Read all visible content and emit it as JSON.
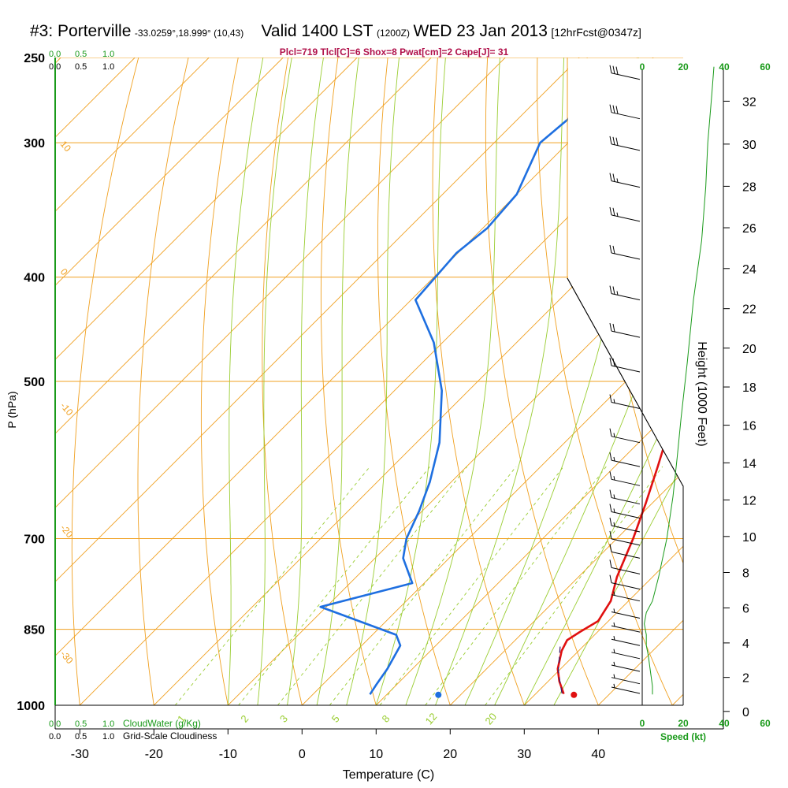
{
  "header": {
    "station": "#3: Porterville",
    "coords": "-33.0259°,18.999° (10,43)",
    "valid": "Valid 1400 LST",
    "zulu": "(1200Z)",
    "date": "WED 23 Jan 2013",
    "forecast": "[12hrFcst@0347z]",
    "indices": "Plcl=719 Tlcl[C]=6 Shox=8 Pwat[cm]=2 Cape[J]= 31"
  },
  "chart_data": {
    "type": "line",
    "subtype": "skew-t log-p sounding",
    "xlabel": "Temperature (C)",
    "ylabel": "P (hPa)",
    "right_axis_label": "Height (1000 Feet)",
    "xlim": [
      -30,
      40
    ],
    "ylim": [
      1000,
      250
    ],
    "x_ticks": [
      "-30",
      "-20",
      "-10",
      "0",
      "10",
      "20",
      "30",
      "40"
    ],
    "pressure_ticks": [
      250,
      300,
      400,
      500,
      700,
      850,
      1000
    ],
    "height_ticks": [
      0,
      2,
      4,
      6,
      8,
      10,
      12,
      14,
      16,
      18,
      20,
      22,
      24,
      26,
      28,
      30,
      32
    ],
    "colors": {
      "temperature": "#e01010",
      "dewpoint": "#1e6fe0",
      "isotherm": "#f0a020",
      "mixing_ratio": "#9acd32",
      "moist_adiabat": "#9acd32",
      "cloud": "#1a9a1a",
      "speed": "#1a9a1a",
      "subtitle": "#b0104a"
    },
    "series": [
      {
        "name": "Temperature",
        "values": [
          {
            "p": 976,
            "t": 33.8
          },
          {
            "p": 950,
            "t": 31.5
          },
          {
            "p": 925,
            "t": 29.6
          },
          {
            "p": 890,
            "t": 27.7
          },
          {
            "p": 870,
            "t": 27.0
          },
          {
            "p": 855,
            "t": 27.6
          },
          {
            "p": 835,
            "t": 28.6
          },
          {
            "p": 800,
            "t": 27.6
          },
          {
            "p": 760,
            "t": 25.2
          },
          {
            "p": 700,
            "t": 22.2
          },
          {
            "p": 650,
            "t": 19.2
          },
          {
            "p": 600,
            "t": 15.8
          },
          {
            "p": 550,
            "t": 12.0
          },
          {
            "p": 500,
            "t": 8.0
          },
          {
            "p": 450,
            "t": 3.6
          },
          {
            "p": 420,
            "t": 0.2
          },
          {
            "p": 400,
            "t": -2.8
          },
          {
            "p": 350,
            "t": -10.2
          },
          {
            "p": 300,
            "t": -18.5
          },
          {
            "p": 280,
            "t": -22.3
          },
          {
            "p": 262,
            "t": -26.0
          }
        ]
      },
      {
        "name": "Dewpoint",
        "values": [
          {
            "p": 977,
            "t": 7.7
          },
          {
            "p": 955,
            "t": 7.2
          },
          {
            "p": 925,
            "t": 6.6
          },
          {
            "p": 880,
            "t": 5.2
          },
          {
            "p": 860,
            "t": 3.2
          },
          {
            "p": 810,
            "t": -10.8
          },
          {
            "p": 770,
            "t": -1.6
          },
          {
            "p": 730,
            "t": -6.2
          },
          {
            "p": 700,
            "t": -8.4
          },
          {
            "p": 660,
            "t": -10.4
          },
          {
            "p": 620,
            "t": -12.9
          },
          {
            "p": 570,
            "t": -16.9
          },
          {
            "p": 510,
            "t": -23.6
          },
          {
            "p": 460,
            "t": -31.2
          },
          {
            "p": 420,
            "t": -39.4
          },
          {
            "p": 380,
            "t": -40.2
          },
          {
            "p": 360,
            "t": -39.4
          },
          {
            "p": 335,
            "t": -40.0
          },
          {
            "p": 300,
            "t": -43.8
          },
          {
            "p": 280,
            "t": -43.0
          },
          {
            "p": 262,
            "t": -42.9
          }
        ]
      },
      {
        "name": "Parcel",
        "values": [
          {
            "p": 975,
            "t": 33.5
          },
          {
            "p": 930,
            "t": 30.0
          },
          {
            "p": 880,
            "t": 26.8
          }
        ]
      }
    ],
    "surface_markers": [
      {
        "name": "surface temperature",
        "p": 978,
        "t": 35.3
      },
      {
        "name": "surface dewpoint",
        "p": 978,
        "t": 17.0
      }
    ],
    "isotherm_labels": [
      "0",
      "10",
      "20",
      "30"
    ],
    "left_temp_labels": [
      "10",
      "0",
      "-10",
      "-20",
      "-30"
    ],
    "mixing_ratio_labels": [
      "1",
      "2",
      "3",
      "5",
      "8",
      "12",
      "20"
    ],
    "cloudiness": {
      "cloudwater_scale_ticks": [
        "0.0",
        "0.5",
        "1.0"
      ],
      "cloudiness_scale_ticks": [
        "0.0",
        "0.5",
        "1.0"
      ],
      "cloudwater_label": "CloudWater (g/Kg)",
      "cloudiness_label": "Grid-Scale Cloudiness"
    },
    "speed_axis": {
      "ticks": [
        "0",
        "20",
        "40",
        "60"
      ],
      "label": "Speed (kt)"
    },
    "wind_profile": [
      {
        "p": 977,
        "spd": 5
      },
      {
        "p": 960,
        "spd": 5
      },
      {
        "p": 930,
        "spd": 4
      },
      {
        "p": 900,
        "spd": 3
      },
      {
        "p": 880,
        "spd": 2
      },
      {
        "p": 860,
        "spd": 2
      },
      {
        "p": 840,
        "spd": 1
      },
      {
        "p": 820,
        "spd": 2
      },
      {
        "p": 800,
        "spd": 5
      },
      {
        "p": 760,
        "spd": 8
      },
      {
        "p": 700,
        "spd": 12
      },
      {
        "p": 640,
        "spd": 15
      },
      {
        "p": 590,
        "spd": 17
      },
      {
        "p": 540,
        "spd": 19
      },
      {
        "p": 480,
        "spd": 22
      },
      {
        "p": 420,
        "spd": 25
      },
      {
        "p": 370,
        "spd": 29
      },
      {
        "p": 330,
        "spd": 31
      },
      {
        "p": 300,
        "spd": 32
      },
      {
        "p": 270,
        "spd": 34
      },
      {
        "p": 255,
        "spd": 35
      }
    ],
    "barbs": [
      {
        "p": 262,
        "spd": 30
      },
      {
        "p": 285,
        "spd": 30
      },
      {
        "p": 305,
        "spd": 30
      },
      {
        "p": 330,
        "spd": 25
      },
      {
        "p": 355,
        "spd": 25
      },
      {
        "p": 385,
        "spd": 20
      },
      {
        "p": 420,
        "spd": 25
      },
      {
        "p": 455,
        "spd": 20
      },
      {
        "p": 490,
        "spd": 20
      },
      {
        "p": 530,
        "spd": 15
      },
      {
        "p": 570,
        "spd": 15
      },
      {
        "p": 600,
        "spd": 15
      },
      {
        "p": 625,
        "spd": 15
      },
      {
        "p": 650,
        "spd": 15
      },
      {
        "p": 670,
        "spd": 15
      },
      {
        "p": 690,
        "spd": 15
      },
      {
        "p": 710,
        "spd": 10
      },
      {
        "p": 730,
        "spd": 10
      },
      {
        "p": 755,
        "spd": 10
      },
      {
        "p": 780,
        "spd": 10
      },
      {
        "p": 800,
        "spd": 5
      },
      {
        "p": 830,
        "spd": 5
      },
      {
        "p": 855,
        "spd": 5
      },
      {
        "p": 880,
        "spd": 5
      },
      {
        "p": 905,
        "spd": 5
      },
      {
        "p": 930,
        "spd": 5
      },
      {
        "p": 955,
        "spd": 5
      },
      {
        "p": 975,
        "spd": 5
      }
    ]
  }
}
